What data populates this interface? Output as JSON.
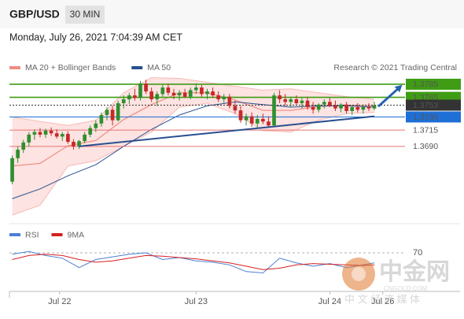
{
  "header": {
    "symbol": "GBP/USD",
    "interval": "30 MIN",
    "timestamp": "Monday, July 26, 2021 7:04:39 AM CET",
    "credit": "Research © 2021 Trading Central"
  },
  "watermark": {
    "brand": "中金网",
    "tagline": "中 文 经 济 媒 体",
    "site": "CNGOLD.COM"
  },
  "chart_data": [
    {
      "type": "candlestick",
      "xlim": [
        -0.5,
        70.5
      ],
      "ylim": [
        1.3579,
        1.3797
      ],
      "up_color": "#2f8f2f",
      "down_color": "#c62828",
      "candles": {
        "open": [
          1.3636,
          1.3672,
          1.3685,
          1.3696,
          1.3708,
          1.3712,
          1.3708,
          1.3714,
          1.371,
          1.3705,
          1.3709,
          1.3697,
          1.369,
          1.3698,
          1.3708,
          1.3718,
          1.3725,
          1.3738,
          1.3746,
          1.373,
          1.3756,
          1.3762,
          1.3768,
          1.3764,
          1.3786,
          1.3774,
          1.3762,
          1.377,
          1.378,
          1.3772,
          1.3768,
          1.3772,
          1.3766,
          1.3776,
          1.378,
          1.377,
          1.3774,
          1.3768,
          1.3762,
          1.3766,
          1.3752,
          1.3745,
          1.373,
          1.3736,
          1.3725,
          1.3732,
          1.3728,
          1.3722,
          1.3768,
          1.3762,
          1.3758,
          1.3762,
          1.3756,
          1.376,
          1.375,
          1.3746,
          1.3754,
          1.3758,
          1.3752,
          1.3748,
          1.3754,
          1.3744,
          1.375,
          1.3746,
          1.375,
          1.3748
        ],
        "high": [
          1.3676,
          1.369,
          1.37,
          1.3712,
          1.3716,
          1.3718,
          1.3717,
          1.3719,
          1.3716,
          1.3712,
          1.3713,
          1.3701,
          1.37,
          1.3712,
          1.3722,
          1.373,
          1.3742,
          1.375,
          1.3752,
          1.376,
          1.3768,
          1.3772,
          1.3778,
          1.379,
          1.3792,
          1.378,
          1.3774,
          1.3784,
          1.3786,
          1.3778,
          1.3776,
          1.3778,
          1.378,
          1.3786,
          1.3784,
          1.3778,
          1.378,
          1.3774,
          1.377,
          1.377,
          1.376,
          1.3752,
          1.374,
          1.3742,
          1.3738,
          1.374,
          1.3736,
          1.3772,
          1.3776,
          1.377,
          1.3766,
          1.3768,
          1.3764,
          1.3766,
          1.3758,
          1.3756,
          1.3762,
          1.3764,
          1.376,
          1.3756,
          1.3758,
          1.3752,
          1.3756,
          1.3754,
          1.3756,
          1.3758
        ],
        "low": [
          1.3632,
          1.3665,
          1.368,
          1.369,
          1.37,
          1.3704,
          1.3703,
          1.3706,
          1.3702,
          1.3698,
          1.3694,
          1.3685,
          1.3686,
          1.3695,
          1.3704,
          1.3712,
          1.372,
          1.373,
          1.3722,
          1.3728,
          1.3748,
          1.3755,
          1.376,
          1.376,
          1.377,
          1.3758,
          1.3752,
          1.3766,
          1.3768,
          1.3762,
          1.376,
          1.3764,
          1.3762,
          1.377,
          1.3766,
          1.3762,
          1.3765,
          1.3758,
          1.3755,
          1.3748,
          1.374,
          1.3726,
          1.3722,
          1.372,
          1.3718,
          1.3724,
          1.3718,
          1.372,
          1.3756,
          1.3752,
          1.375,
          1.3754,
          1.3748,
          1.3746,
          1.374,
          1.3742,
          1.3748,
          1.375,
          1.3744,
          1.3742,
          1.374,
          1.3738,
          1.3742,
          1.374,
          1.3744,
          1.3745
        ],
        "close": [
          1.3672,
          1.3685,
          1.3696,
          1.3708,
          1.3712,
          1.3708,
          1.3714,
          1.371,
          1.3705,
          1.3709,
          1.3697,
          1.369,
          1.3698,
          1.3708,
          1.3718,
          1.3725,
          1.3738,
          1.3746,
          1.373,
          1.3756,
          1.3762,
          1.3768,
          1.3764,
          1.3786,
          1.3774,
          1.3762,
          1.377,
          1.378,
          1.3772,
          1.3768,
          1.3772,
          1.3766,
          1.3776,
          1.378,
          1.377,
          1.3774,
          1.3768,
          1.3762,
          1.3766,
          1.3752,
          1.3745,
          1.373,
          1.3736,
          1.3725,
          1.3732,
          1.3728,
          1.3722,
          1.3768,
          1.3762,
          1.3758,
          1.3762,
          1.3756,
          1.376,
          1.375,
          1.3746,
          1.3754,
          1.3758,
          1.3752,
          1.3748,
          1.3754,
          1.3744,
          1.375,
          1.3746,
          1.375,
          1.3748,
          1.3753
        ]
      },
      "xticks": [
        {
          "value": 8.5,
          "label": "Jul 22"
        },
        {
          "value": 33,
          "label": "Jul 23"
        },
        {
          "value": 57,
          "label": "Jul 24"
        },
        {
          "value": 66.5,
          "label": "Jul 26"
        }
      ],
      "indicators": {
        "x": [
          0,
          5,
          10,
          15,
          20,
          25,
          30,
          35,
          40,
          45,
          50,
          55,
          60,
          65
        ],
        "band_color": "#f7b9b5",
        "band_fill": "#fde3e1",
        "series": [
          {
            "name": "MA 20 + Bollinger Bands",
            "color": "#f08c84",
            "upper": [
              1.3735,
              1.3728,
              1.3722,
              1.373,
              1.3772,
              1.3795,
              1.3794,
              1.3788,
              1.3782,
              1.3776,
              1.3778,
              1.3772,
              1.3766,
              1.3762
            ],
            "values": [
              1.366,
              1.3664,
              1.3691,
              1.3699,
              1.3731,
              1.3754,
              1.3772,
              1.3772,
              1.3761,
              1.3745,
              1.3745,
              1.3751,
              1.3753,
              1.3752
            ],
            "lower": [
              1.3585,
              1.36,
              1.366,
              1.3668,
              1.369,
              1.3712,
              1.375,
              1.3756,
              1.374,
              1.3714,
              1.3712,
              1.373,
              1.374,
              1.3742
            ]
          },
          {
            "name": "MA 50",
            "color": "#2a4f8f",
            "values": [
              1.361,
              1.3625,
              1.3645,
              1.3662,
              1.369,
              1.3716,
              1.3738,
              1.3752,
              1.3758,
              1.3754,
              1.375,
              1.3752,
              1.3752,
              1.375
            ]
          }
        ]
      },
      "levels": [
        {
          "value": 1.3785,
          "color": "#3f9c14",
          "style": "box"
        },
        {
          "value": 1.3765,
          "color": "#3f9c14",
          "style": "box"
        },
        {
          "value": 1.3753,
          "color": "#333333",
          "style": "current"
        },
        {
          "value": 1.3735,
          "color": "#1e6fd6",
          "style": "box"
        },
        {
          "value": 1.3715,
          "color": "#e57373",
          "style": "text"
        },
        {
          "value": 1.369,
          "label": "1.3690",
          "color": "#e57373",
          "style": "text"
        }
      ],
      "trendline": {
        "x": [
          12,
          65
        ],
        "values": [
          1.369,
          1.3736
        ],
        "color": "#2a4f8f"
      },
      "arrow": {
        "x": [
          65.7,
          70
        ],
        "values": [
          1.3751,
          1.3784
        ],
        "color": "#2a63b0"
      }
    },
    {
      "type": "line",
      "xlim": [
        -0.5,
        70.5
      ],
      "ylim": [
        10,
        90
      ],
      "yticks": [
        70
      ],
      "x": [
        0,
        3,
        6,
        9,
        12,
        15,
        18,
        21,
        24,
        27,
        30,
        33,
        36,
        39,
        42,
        45,
        48,
        51,
        54,
        57,
        60,
        63,
        65
      ],
      "series": [
        {
          "name": "RSI",
          "color": "#4a7fd6",
          "values": [
            68,
            72,
            66,
            62,
            48,
            60,
            64,
            68,
            70,
            60,
            63,
            58,
            56,
            52,
            42,
            40,
            62,
            55,
            50,
            54,
            48,
            52,
            55
          ]
        },
        {
          "name": "9MA",
          "color": "#d62020",
          "values": [
            60,
            66,
            68,
            66,
            60,
            56,
            58,
            62,
            66,
            65,
            63,
            61,
            58,
            55,
            50,
            45,
            47,
            52,
            54,
            53,
            52,
            51,
            52
          ]
        }
      ]
    }
  ]
}
